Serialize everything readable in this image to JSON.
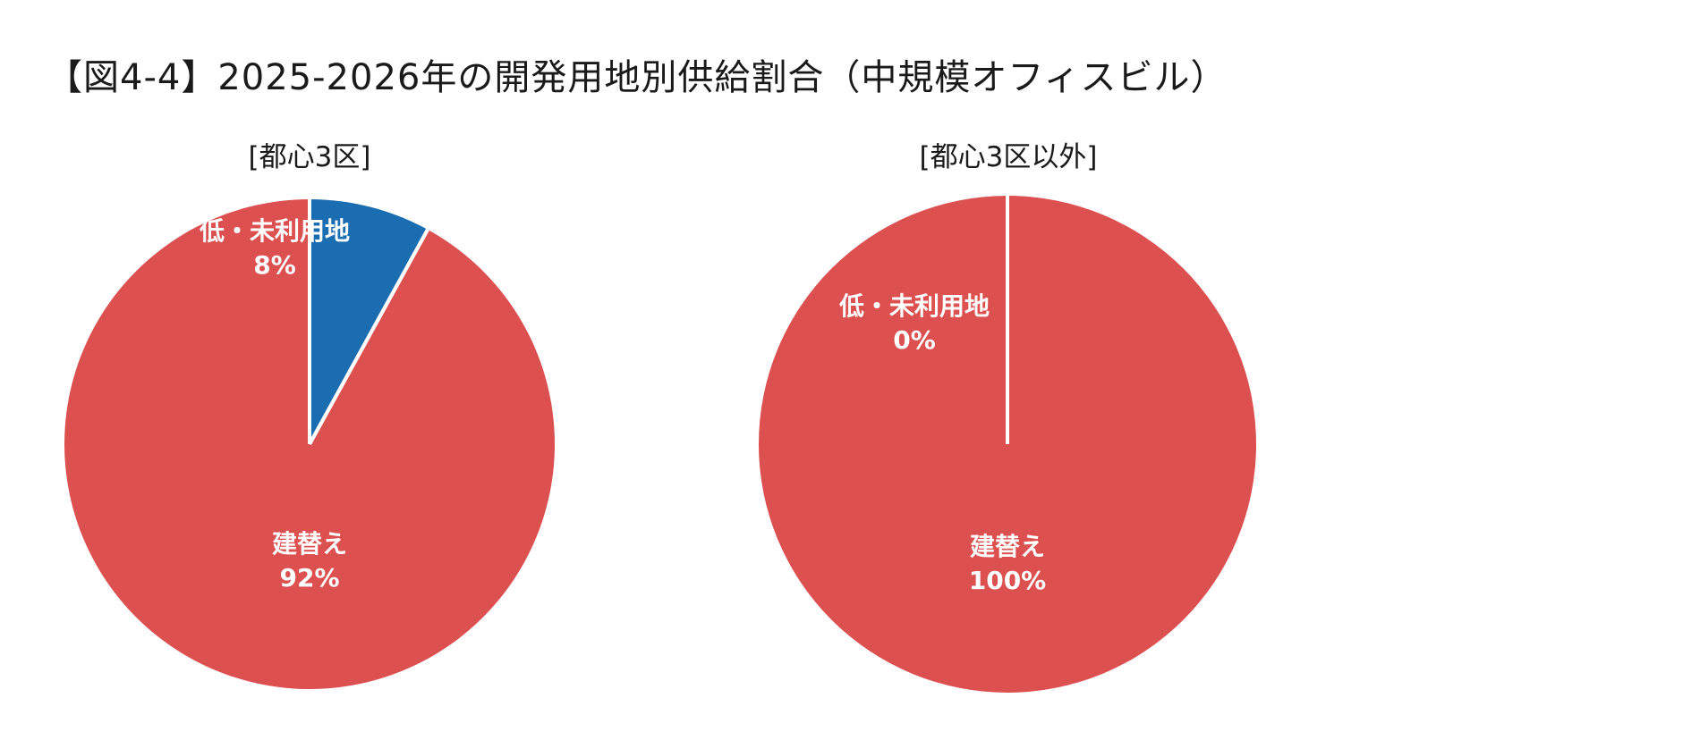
{
  "figure_title": "【図4-4】2025-2026年の開発用地別供給割合（中規模オフィスビル）",
  "colors": {
    "rebuild": "#DD5050",
    "vacant_land": "#1A6DB0",
    "divider": "#ffffff",
    "label": "#ffffff"
  },
  "chart_data": [
    {
      "type": "pie",
      "title": "[都心3区]",
      "slices": [
        {
          "label": "建替え",
          "value": 92,
          "value_label": "92%",
          "color": "#DD5050"
        },
        {
          "label": "低・未利用地",
          "value": 8,
          "value_label": "8%",
          "color": "#1A6DB0"
        }
      ],
      "start": "12 o'clock",
      "direction": "clockwise"
    },
    {
      "type": "pie",
      "title": "[都心3区以外]",
      "slices": [
        {
          "label": "建替え",
          "value": 100,
          "value_label": "100%",
          "color": "#DD5050"
        },
        {
          "label": "低・未利用地",
          "value": 0,
          "value_label": "0%",
          "color": "#1A6DB0"
        }
      ],
      "start": "12 o'clock",
      "direction": "clockwise"
    }
  ]
}
